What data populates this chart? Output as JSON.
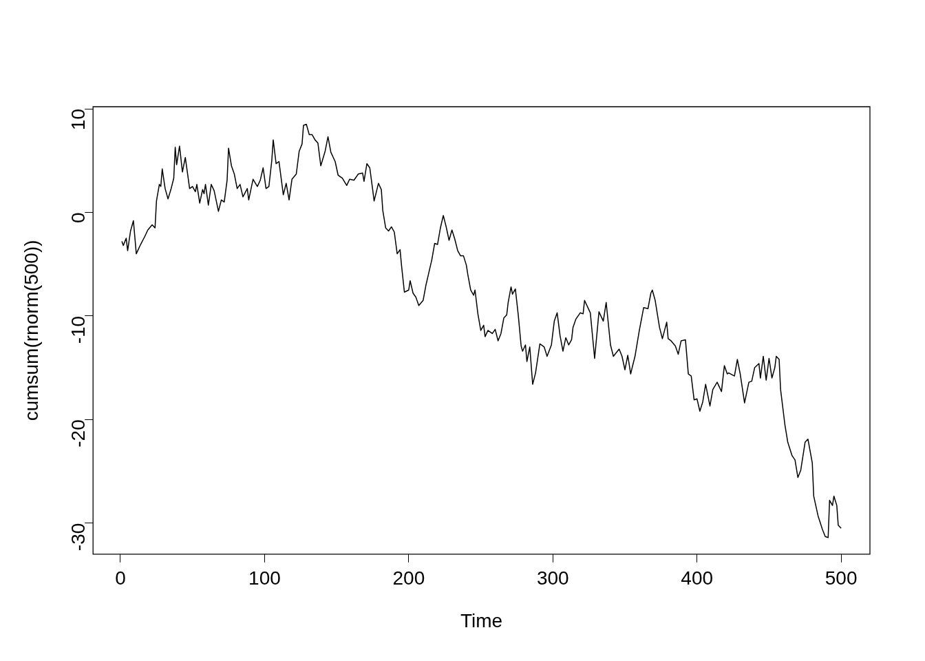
{
  "chart_data": {
    "type": "line",
    "xlabel": "Time",
    "ylabel": "cumsum(rnorm(500))",
    "color": "#000000",
    "grid": false,
    "legend": false,
    "marker": "none",
    "line_style": "solid",
    "xlim": [
      -19,
      520
    ],
    "ylim": [
      -33,
      10.2
    ],
    "xticks": [
      0,
      100,
      200,
      300,
      400,
      500
    ],
    "yticks": [
      -30,
      -20,
      -10,
      0,
      10
    ],
    "x": [
      1,
      2,
      4,
      5,
      7,
      9,
      11,
      14,
      17,
      19,
      22,
      24,
      25,
      27,
      28,
      29,
      31,
      33,
      35,
      37,
      38,
      39,
      41,
      43,
      45,
      48,
      50,
      52,
      53,
      55,
      57,
      58,
      59,
      61,
      63,
      65,
      68,
      70,
      72,
      74,
      75,
      77,
      79,
      81,
      83,
      85,
      88,
      89,
      92,
      95,
      97,
      99,
      101,
      103,
      105,
      106,
      108,
      110,
      113,
      115,
      117,
      119,
      122,
      124,
      126,
      127,
      129,
      131,
      133,
      135,
      137,
      139,
      142,
      144,
      146,
      149,
      151,
      154,
      157,
      159,
      162,
      165,
      168,
      169,
      171,
      173,
      175,
      176,
      179,
      181,
      182,
      184,
      186,
      188,
      190,
      192,
      194,
      195,
      197,
      200,
      201,
      203,
      205,
      207,
      210,
      212,
      214,
      216,
      218,
      220,
      222,
      224,
      226,
      228,
      230,
      232,
      234,
      236,
      238,
      240,
      241,
      243,
      245,
      246,
      248,
      250,
      252,
      253,
      255,
      258,
      260,
      262,
      264,
      266,
      268,
      269,
      271,
      272,
      274,
      276,
      278,
      279,
      281,
      282,
      284,
      286,
      288,
      291,
      294,
      296,
      299,
      301,
      303,
      305,
      307,
      309,
      311,
      313,
      314,
      316,
      319,
      321,
      322,
      326,
      329,
      332,
      335,
      337,
      340,
      342,
      346,
      348,
      350,
      352,
      354,
      355,
      357,
      360,
      363,
      366,
      368,
      369,
      371,
      374,
      376,
      379,
      380,
      382,
      385,
      387,
      389,
      392,
      394,
      396,
      398,
      400,
      402,
      404,
      406,
      409,
      411,
      414,
      417,
      419,
      421,
      422,
      426,
      428,
      430,
      433,
      436,
      438,
      440,
      443,
      444,
      446,
      448,
      450,
      452,
      454,
      455,
      457,
      458,
      461,
      463,
      466,
      468,
      470,
      472,
      475,
      477,
      480,
      481,
      484,
      487,
      489,
      491,
      492,
      494,
      495,
      497,
      498,
      500
    ],
    "values": [
      -2.8,
      -3.2,
      -2.5,
      -3.7,
      -1.8,
      -0.8,
      -4.0,
      -3.1,
      -2.3,
      -1.7,
      -1.2,
      -1.5,
      1.1,
      2.7,
      2.5,
      4.2,
      2.3,
      1.3,
      2.2,
      3.3,
      6.3,
      4.6,
      6.4,
      3.9,
      5.3,
      2.3,
      2.5,
      2.0,
      2.7,
      0.9,
      2.2,
      1.8,
      2.7,
      0.7,
      2.7,
      2.1,
      0.1,
      1.2,
      1.0,
      3.1,
      6.2,
      4.5,
      3.7,
      2.3,
      2.7,
      1.5,
      2.3,
      1.2,
      3.2,
      2.5,
      3.1,
      4.3,
      2.3,
      2.5,
      5.0,
      7.0,
      4.7,
      4.9,
      1.7,
      2.8,
      1.2,
      3.2,
      3.7,
      5.9,
      6.6,
      8.4,
      8.5,
      7.5,
      7.5,
      7.0,
      6.7,
      4.5,
      5.9,
      7.3,
      5.8,
      4.9,
      3.6,
      3.3,
      2.6,
      3.2,
      3.1,
      3.7,
      3.8,
      3.0,
      4.7,
      4.3,
      2.2,
      1.1,
      2.8,
      2.2,
      0.2,
      -1.5,
      -1.8,
      -1.4,
      -1.9,
      -4.0,
      -3.6,
      -5.1,
      -7.7,
      -7.5,
      -6.6,
      -7.8,
      -8.2,
      -9.0,
      -8.5,
      -7.0,
      -5.8,
      -4.6,
      -3.0,
      -3.1,
      -1.5,
      -0.3,
      -1.4,
      -2.7,
      -1.7,
      -2.6,
      -3.7,
      -4.2,
      -4.2,
      -5.1,
      -6.0,
      -7.5,
      -8.0,
      -7.5,
      -9.8,
      -11.4,
      -10.9,
      -12.0,
      -11.4,
      -11.7,
      -11.3,
      -12.4,
      -11.7,
      -10.2,
      -9.9,
      -8.7,
      -7.2,
      -7.9,
      -7.4,
      -9.9,
      -12.9,
      -13.4,
      -12.8,
      -14.4,
      -13.0,
      -16.6,
      -15.5,
      -12.7,
      -13.0,
      -13.9,
      -12.8,
      -10.5,
      -9.7,
      -11.9,
      -13.4,
      -12.1,
      -12.8,
      -12.3,
      -11.1,
      -10.3,
      -9.7,
      -9.8,
      -8.5,
      -9.7,
      -14.1,
      -9.6,
      -10.5,
      -8.7,
      -12.8,
      -13.9,
      -13.2,
      -13.9,
      -15.2,
      -13.8,
      -15.6,
      -15.0,
      -13.9,
      -11.4,
      -9.2,
      -9.3,
      -7.8,
      -7.5,
      -8.5,
      -11.1,
      -12.2,
      -10.6,
      -12.2,
      -12.4,
      -12.9,
      -13.7,
      -12.4,
      -12.3,
      -15.6,
      -15.8,
      -18.1,
      -18.0,
      -19.2,
      -18.3,
      -16.6,
      -18.7,
      -17.1,
      -16.4,
      -17.3,
      -14.8,
      -15.6,
      -15.5,
      -15.8,
      -14.2,
      -15.6,
      -18.4,
      -16.4,
      -16.3,
      -15.0,
      -14.6,
      -16.0,
      -13.9,
      -16.2,
      -14.1,
      -16.0,
      -15.0,
      -13.9,
      -14.2,
      -17.1,
      -20.5,
      -22.2,
      -23.5,
      -23.9,
      -25.6,
      -24.9,
      -22.2,
      -21.9,
      -24.2,
      -27.4,
      -29.3,
      -30.6,
      -31.3,
      -31.4,
      -27.8,
      -28.3,
      -27.4,
      -28.3,
      -30.2,
      -30.5
    ]
  }
}
